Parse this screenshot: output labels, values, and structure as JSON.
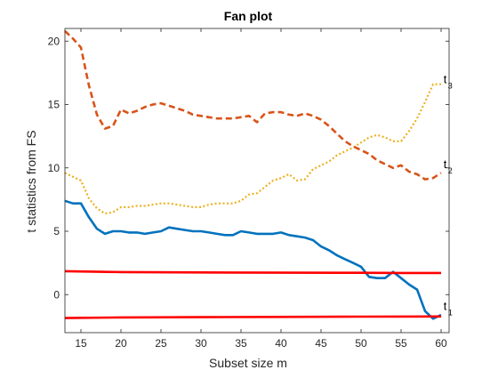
{
  "chart_data": {
    "type": "line",
    "title": "Fan plot",
    "xlabel": "Subset size m",
    "ylabel": "t statistics from FS",
    "xlim": [
      13,
      61
    ],
    "ylim": [
      -3,
      21
    ],
    "xticks": [
      15,
      20,
      25,
      30,
      35,
      40,
      45,
      50,
      55,
      60
    ],
    "yticks": [
      0,
      5,
      10,
      15,
      20
    ],
    "grid": false,
    "series": [
      {
        "name": "t3",
        "color": "#EDB120",
        "style": "dotted",
        "x": [
          13,
          14,
          15,
          16,
          17,
          18,
          19,
          20,
          21,
          22,
          23,
          24,
          25,
          26,
          27,
          28,
          29,
          30,
          31,
          32,
          33,
          34,
          35,
          36,
          37,
          38,
          39,
          40,
          41,
          42,
          43,
          44,
          45,
          46,
          47,
          48,
          49,
          50,
          51,
          52,
          53,
          54,
          55,
          56,
          57,
          58,
          59,
          60
        ],
        "y": [
          9.6,
          9.3,
          9.0,
          7.6,
          6.8,
          6.4,
          6.5,
          6.9,
          6.9,
          7.0,
          7.0,
          7.1,
          7.2,
          7.2,
          7.1,
          7.0,
          6.9,
          6.9,
          7.1,
          7.2,
          7.2,
          7.2,
          7.4,
          7.9,
          8.0,
          8.5,
          9.0,
          9.2,
          9.5,
          9.0,
          9.1,
          9.9,
          10.2,
          10.5,
          11.0,
          11.3,
          11.6,
          12.0,
          12.4,
          12.6,
          12.4,
          12.1,
          12.1,
          12.9,
          13.9,
          15.2,
          16.6,
          16.6
        ]
      },
      {
        "name": "t2",
        "color": "#D95319",
        "style": "dashed",
        "x": [
          13,
          14,
          15,
          16,
          17,
          18,
          19,
          20,
          21,
          22,
          23,
          24,
          25,
          26,
          27,
          28,
          29,
          30,
          31,
          32,
          33,
          34,
          35,
          36,
          37,
          38,
          39,
          40,
          41,
          42,
          43,
          44,
          45,
          46,
          47,
          48,
          49,
          50,
          51,
          52,
          53,
          54,
          55,
          56,
          57,
          58,
          59,
          60
        ],
        "y": [
          20.8,
          20.2,
          19.5,
          16.5,
          14.2,
          13.1,
          13.3,
          14.6,
          14.3,
          14.5,
          14.8,
          15.0,
          15.1,
          14.9,
          14.7,
          14.5,
          14.2,
          14.1,
          14.0,
          13.9,
          13.9,
          13.9,
          14.0,
          14.1,
          13.6,
          14.3,
          14.4,
          14.4,
          14.2,
          14.1,
          14.3,
          14.1,
          13.8,
          13.3,
          12.7,
          12.1,
          11.7,
          11.4,
          11.1,
          10.6,
          10.3,
          10.0,
          10.2,
          9.7,
          9.5,
          9.1,
          9.2,
          9.6
        ]
      },
      {
        "name": "t1",
        "color": "#0072BD",
        "style": "solid",
        "x": [
          13,
          14,
          15,
          16,
          17,
          18,
          19,
          20,
          21,
          22,
          23,
          24,
          25,
          26,
          27,
          28,
          29,
          30,
          31,
          32,
          33,
          34,
          35,
          36,
          37,
          38,
          39,
          40,
          41,
          42,
          43,
          44,
          45,
          46,
          47,
          48,
          49,
          50,
          51,
          52,
          53,
          54,
          55,
          56,
          57,
          58,
          59,
          60
        ],
        "y": [
          7.4,
          7.2,
          7.2,
          6.1,
          5.2,
          4.8,
          5.0,
          5.0,
          4.9,
          4.9,
          4.8,
          4.9,
          5.0,
          5.3,
          5.2,
          5.1,
          5.0,
          5.0,
          4.9,
          4.8,
          4.7,
          4.7,
          5.0,
          4.9,
          4.8,
          4.8,
          4.8,
          4.9,
          4.7,
          4.6,
          4.5,
          4.3,
          3.8,
          3.5,
          3.1,
          2.8,
          2.5,
          2.2,
          1.4,
          1.3,
          1.3,
          1.8,
          1.3,
          0.8,
          0.4,
          -1.3,
          -1.9,
          -1.6
        ]
      },
      {
        "name": "band-upper",
        "color": "#FF0000",
        "style": "solid",
        "x": [
          13,
          20,
          30,
          40,
          50,
          55,
          60
        ],
        "y": [
          1.85,
          1.78,
          1.75,
          1.73,
          1.72,
          1.71,
          1.71
        ]
      },
      {
        "name": "band-lower",
        "color": "#FF0000",
        "style": "solid",
        "x": [
          13,
          20,
          30,
          40,
          50,
          55,
          60
        ],
        "y": [
          -1.85,
          -1.8,
          -1.78,
          -1.76,
          -1.74,
          -1.73,
          -1.72
        ]
      }
    ],
    "series_labels": [
      {
        "main": "t",
        "sub": "3",
        "x": 60.3,
        "y": 16.7
      },
      {
        "main": "t",
        "sub": "2",
        "x": 60.3,
        "y": 10.0
      },
      {
        "main": "t",
        "sub": "1",
        "x": 60.3,
        "y": -1.2
      }
    ]
  }
}
